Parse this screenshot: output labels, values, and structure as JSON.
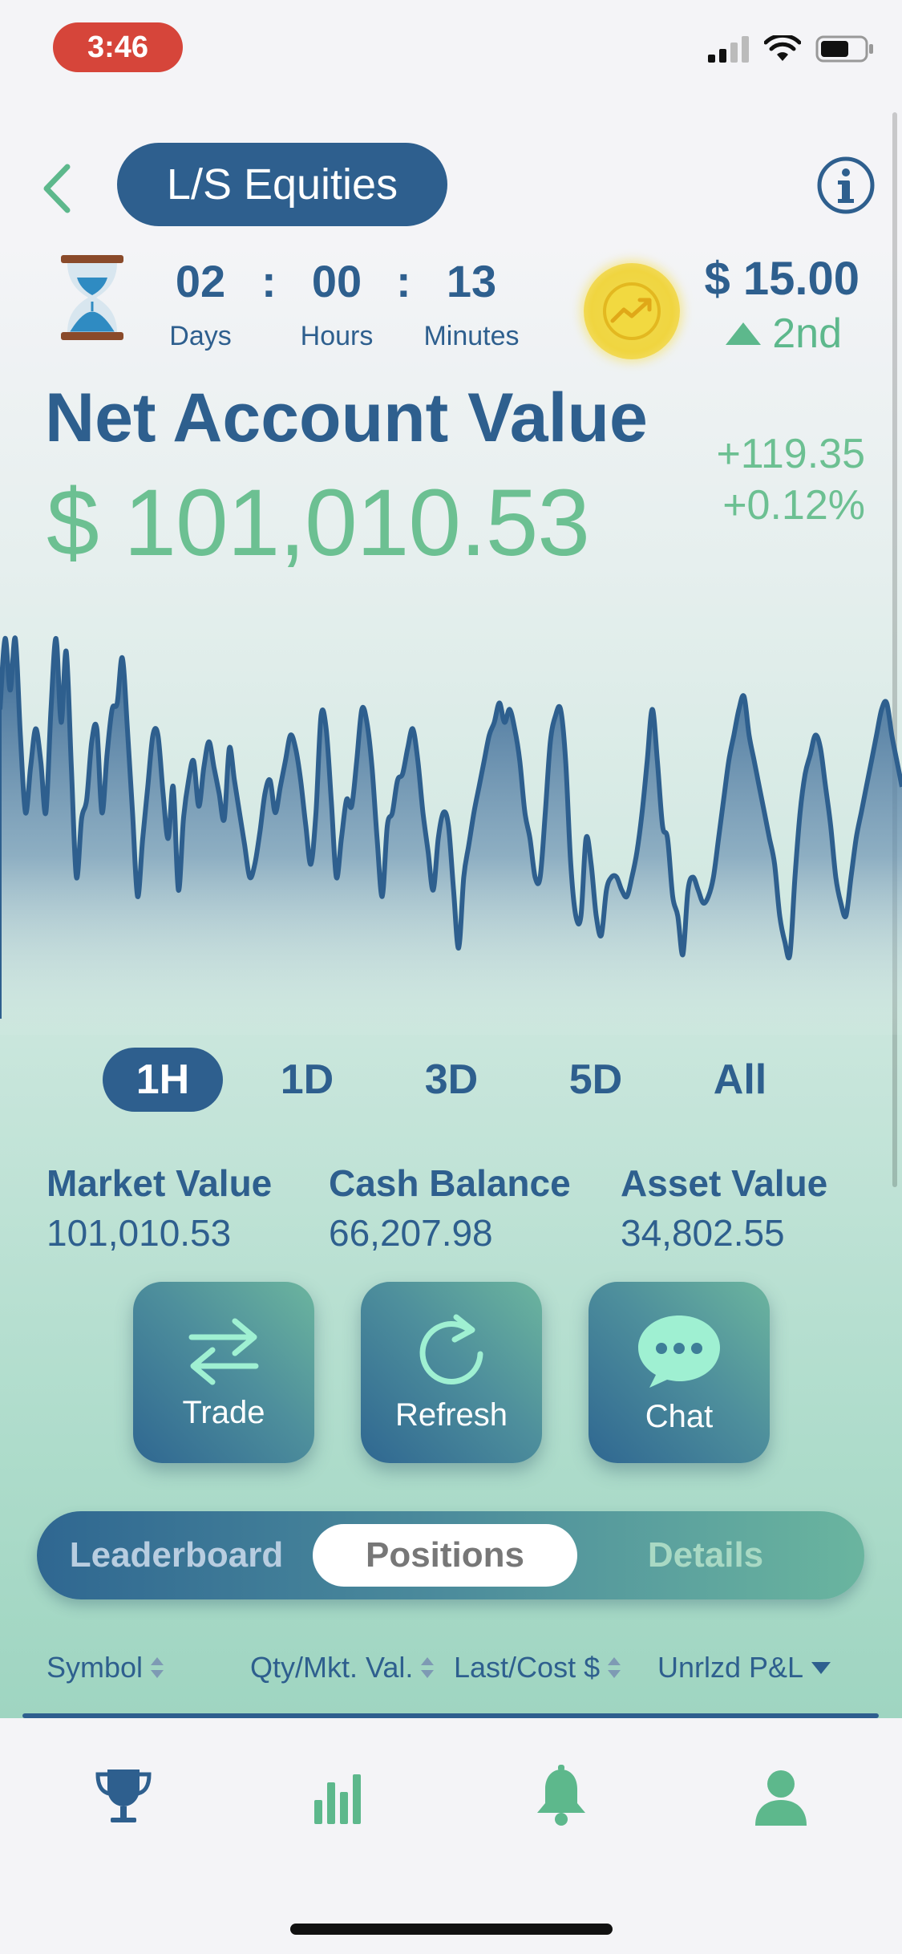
{
  "status_bar": {
    "time": "3:46"
  },
  "header": {
    "title": "L/S Equities"
  },
  "countdown": {
    "days": "02",
    "hours": "00",
    "minutes": "13",
    "separator": ":",
    "days_label": "Days",
    "hours_label": "Hours",
    "minutes_label": "Minutes"
  },
  "prize": {
    "amount": "$ 15.00",
    "rank": "2nd"
  },
  "account": {
    "title": "Net Account Value",
    "value": "$ 101,010.53",
    "change_abs": "+119.35",
    "change_pct": "+0.12%"
  },
  "chart_data": {
    "type": "area",
    "series": [
      {
        "values": [
          560,
          505,
          545,
          505,
          580,
          640,
          605,
          575,
          600,
          640,
          560,
          505,
          570,
          515,
          605,
          690,
          645,
          630,
          585,
          575,
          640,
          595,
          560,
          555,
          520,
          575,
          640,
          705,
          660,
          620,
          580,
          580,
          625,
          660,
          620,
          700,
          645,
          615,
          600,
          635,
          605,
          585,
          605,
          625,
          645,
          590,
          615,
          640,
          665,
          690,
          680,
          655,
          625,
          615,
          640,
          620,
          600,
          580,
          590,
          615,
          650,
          680,
          640,
          565,
          575,
          630,
          690,
          660,
          630,
          635,
          600,
          560,
          570,
          605,
          660,
          705,
          650,
          640,
          615,
          610,
          590,
          575,
          600,
          640,
          670,
          700,
          660,
          640,
          650,
          700,
          745,
          690,
          665,
          640,
          620,
          600,
          580,
          570,
          555,
          570,
          560,
          575,
          600,
          640,
          660,
          690,
          690,
          640,
          585,
          565,
          560,
          600,
          680,
          720,
          720,
          660,
          680,
          720,
          735,
          700,
          690,
          690,
          700,
          705,
          690,
          670,
          640,
          600,
          560,
          600,
          650,
          660,
          705,
          720,
          750,
          700,
          690,
          700,
          710,
          705,
          690,
          660,
          630,
          600,
          580,
          560,
          550,
          580,
          600,
          620,
          640,
          660,
          680,
          720,
          740,
          750,
          690,
          640,
          610,
          595,
          580,
          590,
          620,
          650,
          690,
          710,
          720,
          690,
          660,
          640,
          620,
          600,
          580,
          560,
          555,
          580,
          600,
          620
        ]
      }
    ],
    "active_range": "1H",
    "grid": false
  },
  "ranges": [
    "1H",
    "1D",
    "3D",
    "5D",
    "All"
  ],
  "stats": [
    {
      "label": "Market Value",
      "value": "101,010.53"
    },
    {
      "label": "Cash Balance",
      "value": "66,207.98"
    },
    {
      "label": "Asset Value",
      "value": "34,802.55"
    }
  ],
  "actions": {
    "trade": "Trade",
    "refresh": "Refresh",
    "chat": "Chat"
  },
  "segments": {
    "leaderboard": "Leaderboard",
    "positions": "Positions",
    "details": "Details",
    "active": "Positions"
  },
  "table_header": {
    "symbol": "Symbol",
    "qty": "Qty/Mkt. Val.",
    "last": "Last/Cost $",
    "pnl": "Unrlzd P&L"
  },
  "icons": {
    "back": "chevron-left-icon",
    "info": "info-icon",
    "hourglass": "hourglass-icon",
    "coin": "trend-coin-icon",
    "trade": "swap-arrows-icon",
    "refresh": "refresh-icon",
    "chat": "chat-bubble-icon",
    "nav": [
      "trophy-icon",
      "bar-chart-icon",
      "bell-icon",
      "profile-icon"
    ]
  },
  "colors": {
    "primary": "#2e5f8e",
    "accent_green": "#6cc092",
    "coin_yellow": "#f0d540",
    "status_red": "#d6453a"
  }
}
